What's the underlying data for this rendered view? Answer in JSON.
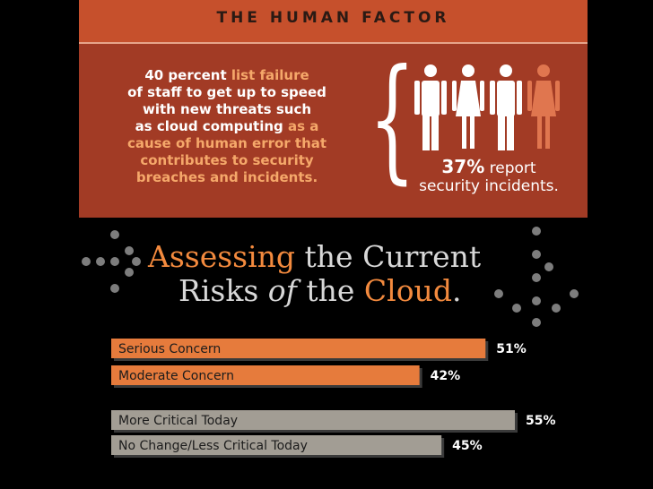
{
  "header": {
    "title": "THE HUMAN FACTOR"
  },
  "stat_block": {
    "line1_pre": "40 percent",
    "line1_hl": " list failure",
    "line2": "of staff to get up to speed",
    "line3": "with new threats such",
    "line4_pre": "as cloud computing",
    "line4_hl": " as a",
    "line5": "cause of human error that",
    "line6": "contributes to security",
    "line7": "breaches and incidents."
  },
  "incident_stat": {
    "value": "37%",
    "text1": " report",
    "text2": "security incidents.",
    "figures_total": 4,
    "figures_highlighted": 1,
    "figure_color": "#ffffff",
    "highlight_color": "#e0764f"
  },
  "headline": {
    "w1": "Assessing",
    "w2": " the Current",
    "w3": "Risks ",
    "w4": "of",
    "w5": " the ",
    "w6": "Cloud",
    "w7": "."
  },
  "colors": {
    "orange_bar": "#e67b3c",
    "gray_bar": "#a29d94",
    "panel": "#a23b25",
    "band": "#c6502c",
    "headline_accent": "#f38a3e"
  },
  "chart_data": {
    "type": "bar",
    "orientation": "horizontal",
    "xlim": [
      0,
      55
    ],
    "series": [
      {
        "group": 1,
        "color": "#e67b3c",
        "categories": [
          "Serious Concern",
          "Moderate Concern"
        ],
        "values": [
          51,
          42
        ],
        "labels": [
          "51%",
          "42%"
        ]
      },
      {
        "group": 2,
        "color": "#a29d94",
        "categories": [
          "More Critical Today",
          "No Change/Less Critical Today"
        ],
        "values": [
          55,
          45
        ],
        "labels": [
          "55%",
          "45%"
        ]
      }
    ]
  }
}
